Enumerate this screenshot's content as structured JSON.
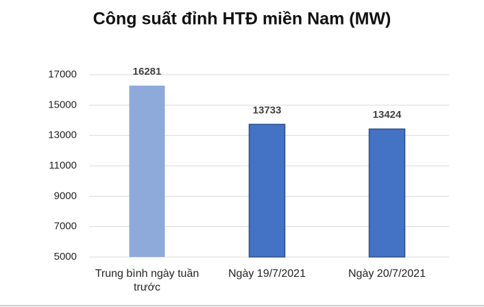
{
  "chart_data": {
    "type": "bar",
    "title": "Công suất đỉnh HTĐ miền Nam (MW)",
    "categories": [
      "Trung bình ngày tuần trước",
      "Ngày 19/7/2021",
      "Ngày 20/7/2021"
    ],
    "values": [
      16281,
      13733,
      13424
    ],
    "colors": [
      "#8eaadb",
      "#4472c4",
      "#4472c4"
    ],
    "ylim": [
      5000,
      17000
    ],
    "yticks": [
      5000,
      7000,
      9000,
      11000,
      13000,
      15000,
      17000
    ],
    "grid": true
  }
}
